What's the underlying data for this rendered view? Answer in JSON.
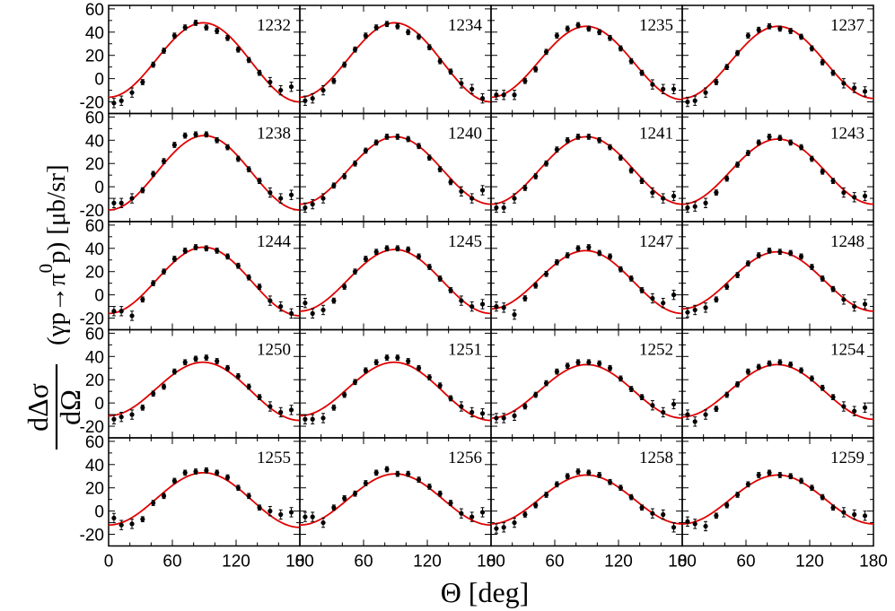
{
  "chart_data": {
    "type": "scatter",
    "layout": "5x4 panel grid",
    "xlabel": "Θ [deg]",
    "ylabel": {
      "numerator": "dΔσ",
      "denominator": "dΩ",
      "reaction": "(γp→π",
      "reaction_sup": "0",
      "reaction_tail": "p)",
      "units": "[μb/sr]"
    },
    "xlim": [
      0,
      180
    ],
    "ylim": [
      -30,
      63
    ],
    "x_ticks": [
      "0",
      "60",
      "120",
      "180"
    ],
    "y_ticks": [
      "-20",
      "0",
      "20",
      "40",
      "60"
    ],
    "fit_color": "#e00000",
    "point_color": "#000000",
    "angles": [
      5,
      12,
      22,
      32,
      42,
      52,
      62,
      72,
      82,
      92,
      102,
      112,
      122,
      132,
      142,
      152,
      162,
      172
    ],
    "panels": [
      {
        "energy": "1232",
        "a": 15,
        "b": 33,
        "c": 2,
        "values": [
          -21,
          -19,
          -12,
          -3,
          12,
          24,
          37,
          44,
          48,
          44,
          41,
          35,
          25,
          16,
          5,
          -3,
          -10,
          -7
        ]
      },
      {
        "energy": "1234",
        "a": 15,
        "b": 33,
        "c": 2,
        "values": [
          -19,
          -17,
          -10,
          -2,
          12,
          25,
          37,
          44,
          47,
          45,
          40,
          36,
          27,
          15,
          6,
          -4,
          -9,
          -17
        ]
      },
      {
        "energy": "1235",
        "a": 14,
        "b": 31,
        "c": 1,
        "values": [
          -14,
          -14,
          -14,
          -2,
          8,
          23,
          37,
          43,
          46,
          43,
          40,
          35,
          26,
          15,
          5,
          -5,
          -9,
          -9
        ]
      },
      {
        "energy": "1237",
        "a": 14,
        "b": 31,
        "c": 0,
        "values": [
          -20,
          -19,
          -12,
          -3,
          10,
          22,
          37,
          42,
          45,
          43,
          41,
          36,
          26,
          14,
          5,
          -4,
          -8,
          -11
        ]
      },
      {
        "energy": "1238",
        "a": 12,
        "b": 32,
        "c": 0,
        "values": [
          -14,
          -14,
          -10,
          -3,
          11,
          22,
          36,
          44,
          45,
          45,
          40,
          34,
          24,
          15,
          5,
          -5,
          -10,
          -7
        ]
      },
      {
        "energy": "1240",
        "a": 14,
        "b": 29,
        "c": 0,
        "values": [
          -18,
          -15,
          -10,
          1,
          9,
          20,
          31,
          38,
          43,
          43,
          41,
          35,
          25,
          15,
          4,
          -4,
          -10,
          -3
        ]
      },
      {
        "energy": "1241",
        "a": 14,
        "b": 29,
        "c": 0,
        "values": [
          -18,
          -18,
          -10,
          -1,
          9,
          20,
          32,
          40,
          43,
          43,
          40,
          34,
          25,
          14,
          5,
          -5,
          -10,
          -8
        ]
      },
      {
        "energy": "1243",
        "a": 13,
        "b": 28,
        "c": 0,
        "values": [
          -18,
          -17,
          -14,
          -5,
          7,
          19,
          29,
          38,
          43,
          42,
          38,
          34,
          24,
          13,
          5,
          -5,
          -9,
          -8
        ]
      },
      {
        "energy": "1244",
        "a": 12,
        "b": 29,
        "c": 1,
        "values": [
          -14,
          -14,
          -18,
          -4,
          10,
          20,
          31,
          38,
          41,
          40,
          38,
          33,
          25,
          15,
          7,
          -5,
          -10,
          -16
        ]
      },
      {
        "energy": "1245",
        "a": 12,
        "b": 27,
        "c": 1,
        "values": [
          -7,
          -16,
          -13,
          -5,
          7,
          20,
          31,
          37,
          40,
          40,
          39,
          33,
          24,
          14,
          4,
          -5,
          -10,
          -8
        ]
      },
      {
        "energy": "1247",
        "a": 12,
        "b": 26,
        "c": 2,
        "values": [
          -10,
          -11,
          -17,
          -3,
          8,
          18,
          28,
          34,
          40,
          41,
          36,
          33,
          22,
          14,
          4,
          -3,
          -7,
          0
        ]
      },
      {
        "energy": "1248",
        "a": 12,
        "b": 25,
        "c": 1,
        "values": [
          -15,
          -13,
          -11,
          -4,
          7,
          17,
          27,
          34,
          38,
          37,
          36,
          33,
          24,
          14,
          5,
          -4,
          -10,
          -8
        ]
      },
      {
        "energy": "1250",
        "a": 11,
        "b": 24,
        "c": 2,
        "values": [
          -14,
          -12,
          -10,
          -4,
          8,
          14,
          27,
          35,
          38,
          39,
          36,
          30,
          23,
          14,
          5,
          -3,
          -8,
          -6
        ]
      },
      {
        "energy": "1251",
        "a": 11,
        "b": 24,
        "c": 2,
        "values": [
          -14,
          -14,
          -13,
          -4,
          7,
          18,
          28,
          35,
          39,
          39,
          36,
          30,
          22,
          15,
          4,
          -3,
          -8,
          -9
        ]
      },
      {
        "energy": "1252",
        "a": 10,
        "b": 23,
        "c": 0,
        "values": [
          -13,
          -13,
          -11,
          -3,
          7,
          17,
          27,
          32,
          35,
          35,
          34,
          30,
          21,
          12,
          5,
          -2,
          -8,
          -1
        ]
      },
      {
        "energy": "1254",
        "a": 10,
        "b": 23,
        "c": 1,
        "values": [
          -10,
          -16,
          -10,
          -5,
          7,
          16,
          27,
          31,
          34,
          35,
          33,
          28,
          21,
          13,
          5,
          -3,
          -7,
          -4
        ]
      },
      {
        "energy": "1255",
        "a": 10,
        "b": 23,
        "c": 1,
        "values": [
          -6,
          -12,
          -11,
          -7,
          7,
          13,
          26,
          33,
          34,
          35,
          33,
          29,
          20,
          13,
          3,
          0,
          -3,
          -1
        ]
      },
      {
        "energy": "1256",
        "a": 10,
        "b": 22,
        "c": 0,
        "values": [
          -5,
          -5,
          -10,
          3,
          11,
          15,
          24,
          33,
          36,
          32,
          32,
          27,
          21,
          15,
          7,
          -2,
          -5,
          -1
        ]
      },
      {
        "energy": "1258",
        "a": 10,
        "b": 21,
        "c": 0,
        "values": [
          -15,
          -14,
          -10,
          -3,
          5,
          14,
          23,
          30,
          34,
          33,
          31,
          25,
          20,
          12,
          3,
          -2,
          -3,
          -14
        ]
      },
      {
        "energy": "1259",
        "a": 10,
        "b": 21,
        "c": 0,
        "values": [
          -9,
          -11,
          -13,
          -4,
          5,
          14,
          23,
          31,
          33,
          31,
          30,
          26,
          20,
          12,
          3,
          -1,
          -3,
          -4
        ]
      }
    ]
  }
}
